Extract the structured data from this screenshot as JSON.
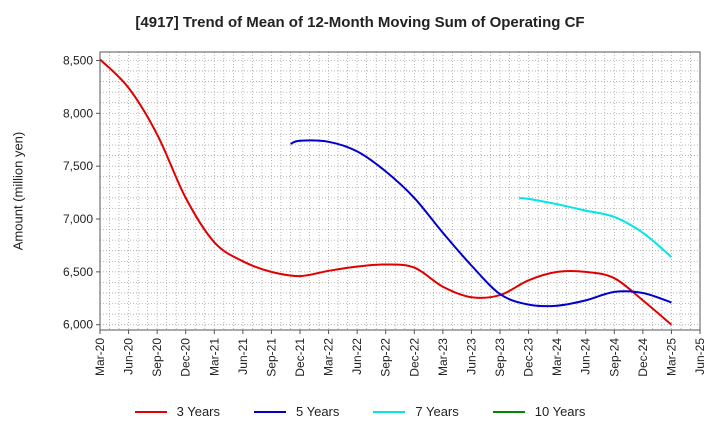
{
  "chart_data": {
    "type": "line",
    "title": "[4917]  Trend of Mean of 12-Month Moving Sum of Operating CF",
    "xlabel": "",
    "ylabel": "Amount (million yen)",
    "ylim": [
      5950,
      8580
    ],
    "yticks": [
      6000,
      6500,
      7000,
      7500,
      8000,
      8500
    ],
    "ytick_labels": [
      "6,000",
      "6,500",
      "7,000",
      "7,500",
      "8,000",
      "8,500"
    ],
    "x_tick_labels": [
      "Mar-20",
      "Jun-20",
      "Sep-20",
      "Dec-20",
      "Mar-21",
      "Jun-21",
      "Sep-21",
      "Dec-21",
      "Mar-22",
      "Jun-22",
      "Sep-22",
      "Dec-22",
      "Mar-23",
      "Jun-23",
      "Sep-23",
      "Dec-23",
      "Mar-24",
      "Jun-24",
      "Sep-24",
      "Dec-24",
      "Mar-25",
      "Jun-25"
    ],
    "grid": true,
    "legend_position": "bottom",
    "series": [
      {
        "name": "3 Years",
        "color": "#e00000",
        "points": [
          [
            0,
            8510
          ],
          [
            1,
            8240
          ],
          [
            2,
            7800
          ],
          [
            3,
            7200
          ],
          [
            4,
            6780
          ],
          [
            5,
            6600
          ],
          [
            6,
            6500
          ],
          [
            7,
            6460
          ],
          [
            8,
            6510
          ],
          [
            9,
            6550
          ],
          [
            10,
            6570
          ],
          [
            11,
            6540
          ],
          [
            12,
            6360
          ],
          [
            13,
            6260
          ],
          [
            14,
            6280
          ],
          [
            15,
            6420
          ],
          [
            16,
            6500
          ],
          [
            17,
            6500
          ],
          [
            18,
            6440
          ],
          [
            19,
            6230
          ],
          [
            20,
            6000
          ]
        ]
      },
      {
        "name": "5 Years",
        "color": "#0000cc",
        "points": [
          [
            6.67,
            7710
          ],
          [
            7,
            7740
          ],
          [
            8,
            7730
          ],
          [
            9,
            7640
          ],
          [
            10,
            7450
          ],
          [
            11,
            7200
          ],
          [
            12,
            6870
          ],
          [
            13,
            6560
          ],
          [
            14,
            6290
          ],
          [
            15,
            6190
          ],
          [
            16,
            6180
          ],
          [
            17,
            6230
          ],
          [
            18,
            6310
          ],
          [
            19,
            6300
          ],
          [
            20,
            6210
          ]
        ]
      },
      {
        "name": "7 Years",
        "color": "#00e5e5",
        "points": [
          [
            14.67,
            7200
          ],
          [
            15,
            7190
          ],
          [
            16,
            7140
          ],
          [
            17,
            7080
          ],
          [
            18,
            7020
          ],
          [
            19,
            6870
          ],
          [
            20,
            6640
          ]
        ]
      },
      {
        "name": "10 Years",
        "color": "#008800",
        "points": []
      }
    ]
  }
}
